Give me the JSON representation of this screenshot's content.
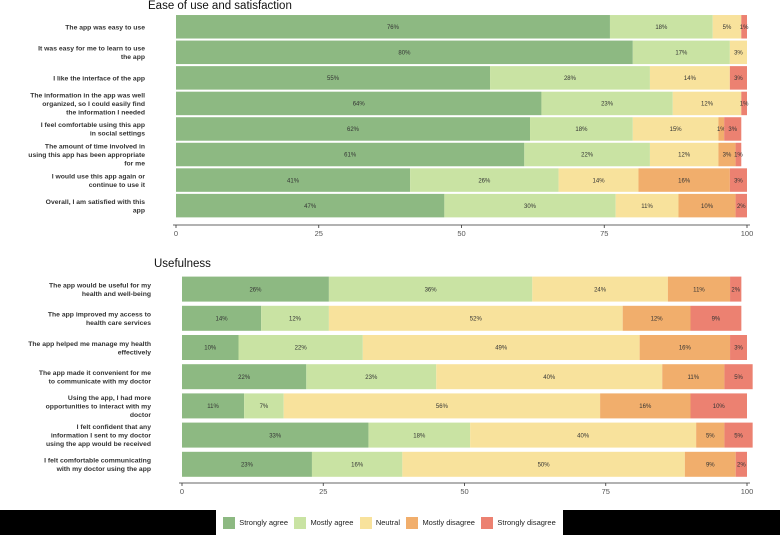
{
  "colors": {
    "Strongly agree": "#8db982",
    "Mostly agree": "#c9e3a3",
    "Neutral": "#f8e29c",
    "Mostly disagree": "#f1ae6c",
    "Strongly disagree": "#ec8171"
  },
  "legend": [
    "Strongly agree",
    "Mostly agree",
    "Neutral",
    "Mostly disagree",
    "Strongly disagree"
  ],
  "chart_data": [
    {
      "type": "bar",
      "orientation": "horizontal-stacked",
      "title": "Ease of use and satisfaction",
      "xlim": [
        0,
        100
      ],
      "xticks": [
        "0",
        "25",
        "50",
        "75",
        "100"
      ],
      "series_names": [
        "Strongly agree",
        "Mostly agree",
        "Neutral",
        "Mostly disagree",
        "Strongly disagree"
      ],
      "categories": [
        [
          "The app was easy to use"
        ],
        [
          "It was easy for me to learn to use",
          "the app"
        ],
        [
          "I like the interface of the app"
        ],
        [
          "The information in the app was well",
          "organized, so I could easily find",
          "the information I needed"
        ],
        [
          "I feel comfortable using this app",
          "in social settings"
        ],
        [
          "The amount of time involved in",
          "using this app has been appropriate",
          "for me"
        ],
        [
          "I would use this app again or",
          "continue to use it"
        ],
        [
          "Overall, I am satisfied with this",
          "app"
        ]
      ],
      "values": [
        [
          76,
          18,
          5,
          0,
          1
        ],
        [
          80,
          17,
          3,
          0,
          0
        ],
        [
          55,
          28,
          14,
          0,
          3
        ],
        [
          64,
          23,
          12,
          0,
          1
        ],
        [
          62,
          18,
          15,
          1,
          3
        ],
        [
          61,
          22,
          12,
          3,
          1
        ],
        [
          41,
          26,
          14,
          16,
          3
        ],
        [
          47,
          30,
          11,
          10,
          2
        ]
      ]
    },
    {
      "type": "bar",
      "orientation": "horizontal-stacked",
      "title": "Usefulness",
      "xlim": [
        0,
        100
      ],
      "xticks": [
        "0",
        "25",
        "50",
        "75",
        "100"
      ],
      "series_names": [
        "Strongly agree",
        "Mostly agree",
        "Neutral",
        "Mostly disagree",
        "Strongly disagree"
      ],
      "categories": [
        [
          "The app would be useful for my",
          "health and well-being"
        ],
        [
          "The app improved my access to",
          "health care services"
        ],
        [
          "The app helped me manage my health",
          "effectively"
        ],
        [
          "The app made it convenient for me",
          "to communicate with my doctor"
        ],
        [
          "Using the app, I had more",
          "opportunities to interact with my",
          "doctor"
        ],
        [
          "I felt confident that any",
          "information I sent to my doctor",
          "using the app would be received"
        ],
        [
          "I felt comfortable communicating",
          "with my doctor using the app"
        ]
      ],
      "values": [
        [
          26,
          36,
          24,
          11,
          2
        ],
        [
          14,
          12,
          52,
          12,
          9
        ],
        [
          10,
          22,
          49,
          16,
          3
        ],
        [
          22,
          23,
          40,
          11,
          5
        ],
        [
          11,
          7,
          56,
          16,
          10
        ],
        [
          33,
          18,
          40,
          5,
          5
        ],
        [
          23,
          16,
          50,
          9,
          2
        ]
      ]
    }
  ]
}
